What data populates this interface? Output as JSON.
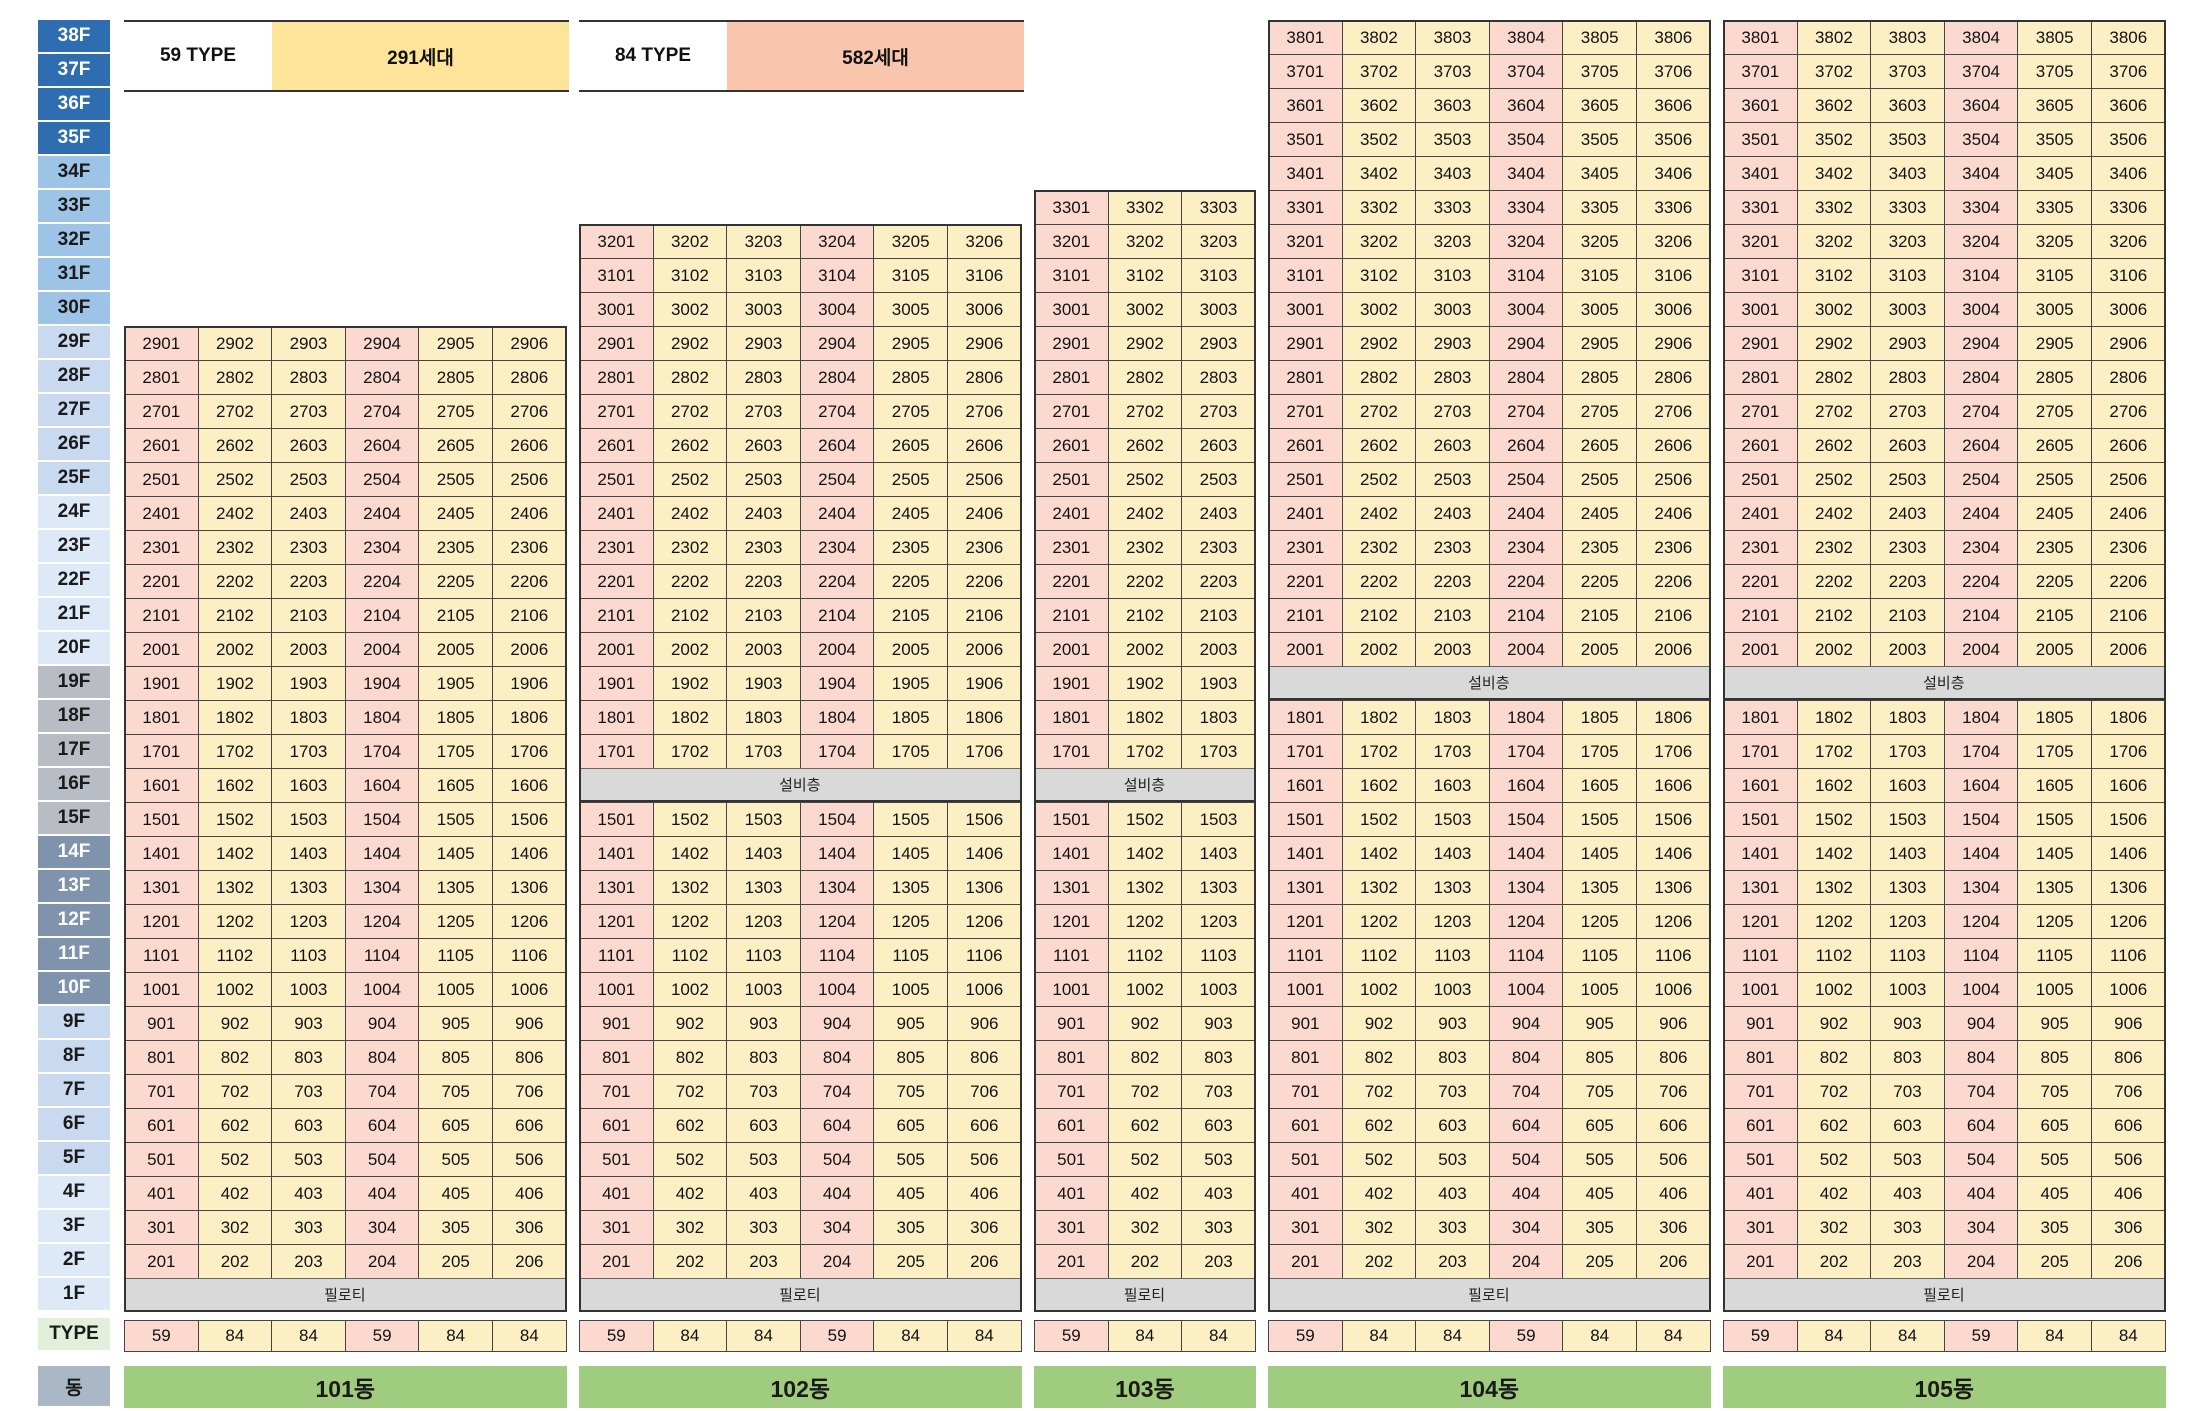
{
  "legend": [
    {
      "type_label": "59 TYPE",
      "count_label": "291세대",
      "color": "#fde49a"
    },
    {
      "type_label": "84 TYPE",
      "count_label": "582세대",
      "color": "#f9c6ad"
    }
  ],
  "floors": [
    "38F",
    "37F",
    "36F",
    "35F",
    "34F",
    "33F",
    "32F",
    "31F",
    "30F",
    "29F",
    "28F",
    "27F",
    "26F",
    "25F",
    "24F",
    "23F",
    "22F",
    "21F",
    "20F",
    "19F",
    "18F",
    "17F",
    "16F",
    "15F",
    "14F",
    "13F",
    "12F",
    "11F",
    "10F",
    "9F",
    "8F",
    "7F",
    "6F",
    "5F",
    "4F",
    "3F",
    "2F",
    "1F"
  ],
  "floor_colors": {
    "38": "#2e6eb0",
    "37": "#2e6eb0",
    "36": "#2e6eb0",
    "35": "#2e6eb0",
    "34": "#9dc3e6",
    "33": "#9dc3e6",
    "32": "#9dc3e6",
    "31": "#9dc3e6",
    "30": "#9dc3e6",
    "29": "#c9daf0",
    "28": "#c9daf0",
    "27": "#c9daf0",
    "26": "#c9daf0",
    "25": "#c9daf0",
    "24": "#dde9f6",
    "23": "#dde9f6",
    "22": "#dde9f6",
    "21": "#dde9f6",
    "20": "#dde9f6",
    "19": "#b8bcc4",
    "18": "#b8bcc4",
    "17": "#b8bcc4",
    "16": "#b8bcc4",
    "15": "#b8bcc4",
    "14": "#7f93ad",
    "13": "#7f93ad",
    "12": "#7f93ad",
    "11": "#7f93ad",
    "10": "#7f93ad",
    "9": "#c9daf0",
    "8": "#c9daf0",
    "7": "#c9daf0",
    "6": "#c9daf0",
    "5": "#c9daf0",
    "4": "#dde9f6",
    "3": "#dde9f6",
    "2": "#dde9f6",
    "1": "#dde9f6"
  },
  "type_label": "TYPE",
  "dong_label": "동",
  "piloti_label": "필로티",
  "mech_label": "설비층",
  "buildings": [
    {
      "name": "101동",
      "top_floor": 29,
      "mech_floor": null,
      "types": [
        "59",
        "84",
        "84",
        "59",
        "84",
        "84"
      ]
    },
    {
      "name": "102동",
      "top_floor": 32,
      "mech_floor": 16,
      "types": [
        "59",
        "84",
        "84",
        "59",
        "84",
        "84"
      ]
    },
    {
      "name": "103동",
      "top_floor": 33,
      "mech_floor": 16,
      "types": [
        "59",
        "84",
        "84"
      ]
    },
    {
      "name": "104동",
      "top_floor": 38,
      "mech_floor": 19,
      "types": [
        "59",
        "84",
        "84",
        "59",
        "84",
        "84"
      ]
    },
    {
      "name": "105동",
      "top_floor": 38,
      "mech_floor": 19,
      "types": [
        "59",
        "84",
        "84",
        "59",
        "84",
        "84"
      ]
    }
  ]
}
